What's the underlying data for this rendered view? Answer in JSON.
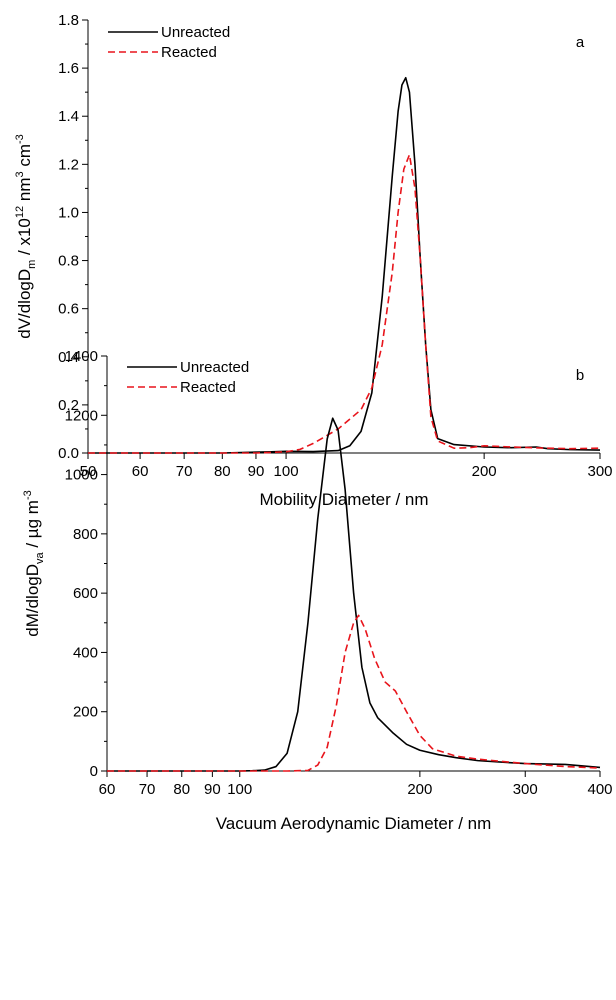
{
  "chart_data": [
    {
      "type": "line",
      "panel_label": "a",
      "xlabel": "Mobility Diameter / nm",
      "ylabel": "dV/dlogD",
      "ylabel_sub": "m",
      "ylabel_rest": " / x10",
      "ylabel_exp": "12",
      "ylabel_units": " nm",
      "ylabel_units_exp": "3",
      "ylabel_units2": " cm",
      "ylabel_units2_exp": "-3",
      "x_scale": "log",
      "xlim": [
        50,
        300
      ],
      "ylim": [
        0,
        1.8
      ],
      "x_ticks": [
        50,
        60,
        70,
        80,
        90,
        100,
        200,
        300
      ],
      "x_tick_labels": [
        "50",
        "60",
        "70",
        "80",
        "90",
        "100",
        "200",
        "300"
      ],
      "y_ticks": [
        0,
        0.2,
        0.4,
        0.6,
        0.8,
        1.0,
        1.2,
        1.4,
        1.6,
        1.8
      ],
      "y_tick_labels": [
        "0.0",
        "0.2",
        "0.4",
        "0.6",
        "0.8",
        "1.0",
        "1.2",
        "1.4",
        "1.6",
        "1.8"
      ],
      "legend_position": "top-left",
      "series": [
        {
          "name": "Unreacted",
          "color": "#000000",
          "dash": "solid",
          "points": [
            [
              50,
              0
            ],
            [
              80,
              0
            ],
            [
              95,
              0.005
            ],
            [
              100,
              0.007
            ],
            [
              110,
              0.006
            ],
            [
              120,
              0.01
            ],
            [
              125,
              0.03
            ],
            [
              130,
              0.09
            ],
            [
              135,
              0.25
            ],
            [
              140,
              0.65
            ],
            [
              145,
              1.15
            ],
            [
              148,
              1.42
            ],
            [
              150,
              1.53
            ],
            [
              152,
              1.56
            ],
            [
              154,
              1.5
            ],
            [
              157,
              1.2
            ],
            [
              160,
              0.8
            ],
            [
              163,
              0.45
            ],
            [
              166,
              0.18
            ],
            [
              170,
              0.06
            ],
            [
              180,
              0.035
            ],
            [
              200,
              0.025
            ],
            [
              220,
              0.022
            ],
            [
              240,
              0.025
            ],
            [
              250,
              0.018
            ],
            [
              270,
              0.014
            ],
            [
              300,
              0.012
            ]
          ]
        },
        {
          "name": "Reacted",
          "color": "#e8141b",
          "dash": "dashed",
          "points": [
            [
              50,
              0
            ],
            [
              90,
              0
            ],
            [
              100,
              0.005
            ],
            [
              105,
              0.015
            ],
            [
              110,
              0.04
            ],
            [
              120,
              0.1
            ],
            [
              130,
              0.18
            ],
            [
              135,
              0.27
            ],
            [
              140,
              0.45
            ],
            [
              145,
              0.75
            ],
            [
              148,
              1.0
            ],
            [
              151,
              1.18
            ],
            [
              154,
              1.24
            ],
            [
              157,
              1.1
            ],
            [
              160,
              0.8
            ],
            [
              163,
              0.45
            ],
            [
              166,
              0.15
            ],
            [
              170,
              0.05
            ],
            [
              180,
              0.02
            ],
            [
              190,
              0.022
            ],
            [
              200,
              0.03
            ],
            [
              220,
              0.025
            ],
            [
              250,
              0.02
            ],
            [
              270,
              0.018
            ],
            [
              300,
              0.02
            ]
          ]
        }
      ]
    },
    {
      "type": "line",
      "panel_label": "b",
      "xlabel": "Vacuum Aerodynamic Diameter / nm",
      "ylabel": "dM/dlogD",
      "ylabel_sub": "va",
      "ylabel_rest": " / µg m",
      "ylabel_exp": "-3",
      "x_scale": "log",
      "xlim": [
        60,
        400
      ],
      "ylim": [
        0,
        1400
      ],
      "x_ticks": [
        60,
        70,
        80,
        90,
        100,
        200,
        300,
        400
      ],
      "x_tick_labels": [
        "60",
        "70",
        "80",
        "90",
        "100",
        "200",
        "300",
        "400"
      ],
      "y_ticks": [
        0,
        200,
        400,
        600,
        800,
        1000,
        1200,
        1400
      ],
      "y_tick_labels": [
        "0",
        "200",
        "400",
        "600",
        "800",
        "1000",
        "1200",
        "1400"
      ],
      "legend_position": "top-left",
      "series": [
        {
          "name": "Unreacted",
          "color": "#000000",
          "dash": "solid",
          "points": [
            [
              60,
              0
            ],
            [
              100,
              0
            ],
            [
              105,
              1
            ],
            [
              110,
              3
            ],
            [
              115,
              15
            ],
            [
              120,
              60
            ],
            [
              125,
              200
            ],
            [
              130,
              500
            ],
            [
              135,
              850
            ],
            [
              140,
              1120
            ],
            [
              143,
              1190
            ],
            [
              146,
              1150
            ],
            [
              150,
              950
            ],
            [
              155,
              600
            ],
            [
              160,
              350
            ],
            [
              165,
              230
            ],
            [
              170,
              180
            ],
            [
              180,
              130
            ],
            [
              190,
              90
            ],
            [
              200,
              70
            ],
            [
              215,
              55
            ],
            [
              230,
              45
            ],
            [
              250,
              35
            ],
            [
              300,
              25
            ],
            [
              350,
              22
            ],
            [
              360,
              20
            ],
            [
              400,
              12
            ]
          ]
        },
        {
          "name": "Reacted",
          "color": "#e8141b",
          "dash": "dashed",
          "points": [
            [
              60,
              0
            ],
            [
              70,
              0
            ],
            [
              80,
              0
            ],
            [
              120,
              0
            ],
            [
              130,
              2
            ],
            [
              135,
              20
            ],
            [
              140,
              80
            ],
            [
              145,
              220
            ],
            [
              150,
              400
            ],
            [
              155,
              500
            ],
            [
              158,
              525
            ],
            [
              162,
              480
            ],
            [
              168,
              380
            ],
            [
              175,
              300
            ],
            [
              182,
              270
            ],
            [
              190,
              200
            ],
            [
              200,
              120
            ],
            [
              210,
              75
            ],
            [
              230,
              50
            ],
            [
              250,
              40
            ],
            [
              300,
              25
            ],
            [
              350,
              15
            ],
            [
              400,
              10
            ]
          ]
        }
      ]
    }
  ]
}
